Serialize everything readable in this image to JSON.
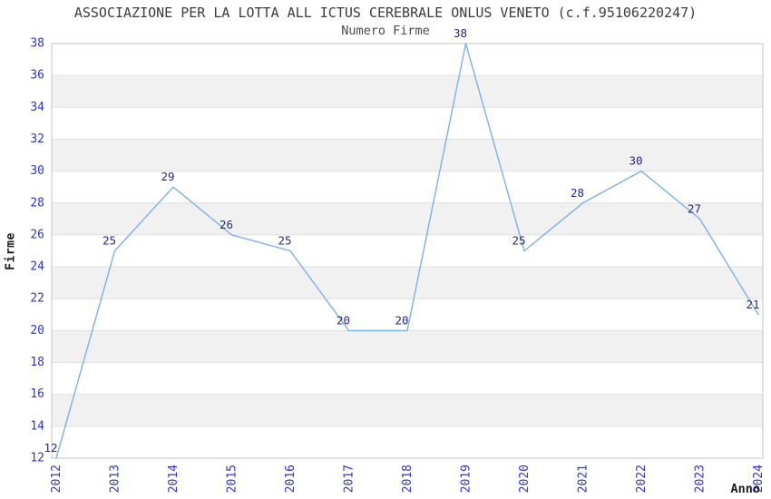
{
  "header": {
    "title": "ASSOCIAZIONE PER LA LOTTA ALL ICTUS CEREBRALE ONLUS VENETO (c.f.95106220247)",
    "subtitle": "Numero Firme"
  },
  "chart_data": {
    "type": "line",
    "title": "ASSOCIAZIONE PER LA LOTTA ALL ICTUS CEREBRALE ONLUS VENETO (c.f.95106220247)",
    "subtitle": "Numero Firme",
    "xlabel": "Anno",
    "ylabel": "Firme",
    "x": [
      2012,
      2013,
      2014,
      2015,
      2016,
      2017,
      2018,
      2019,
      2020,
      2021,
      2022,
      2023,
      2024
    ],
    "values": [
      12,
      25,
      29,
      26,
      25,
      20,
      20,
      38,
      25,
      28,
      30,
      27,
      21
    ],
    "ylim": [
      12,
      38
    ],
    "ytick_step": 2,
    "yticks": [
      12,
      14,
      16,
      18,
      20,
      22,
      24,
      26,
      28,
      30,
      32,
      34,
      36,
      38
    ],
    "grid": "horizontal-bands-alternating",
    "legend": "none",
    "data_labels_shown": true,
    "colors": {
      "line": "#7cb0e8",
      "data_label": "#28287d",
      "tick_label": "#3333cc",
      "band_fill": "#f1f1f1",
      "band_alt_fill": "#ffffff",
      "grid_line": "#e0e0e0",
      "plot_border": "#c6c6c6",
      "title_text": "#3c3c3c",
      "axis_title_text": "#1c1c1c",
      "background": "#ffffff"
    }
  }
}
